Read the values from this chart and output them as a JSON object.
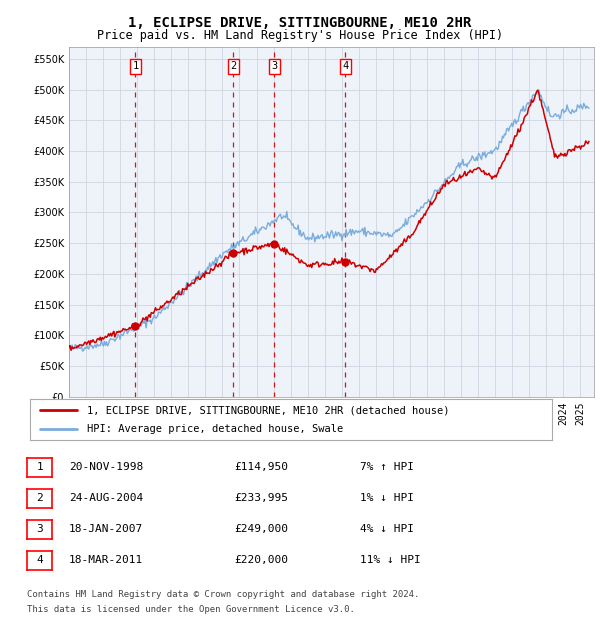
{
  "title": "1, ECLIPSE DRIVE, SITTINGBOURNE, ME10 2HR",
  "subtitle": "Price paid vs. HM Land Registry's House Price Index (HPI)",
  "ylim": [
    0,
    570000
  ],
  "yticks": [
    0,
    50000,
    100000,
    150000,
    200000,
    250000,
    300000,
    350000,
    400000,
    450000,
    500000,
    550000
  ],
  "xlim_start": 1995.0,
  "xlim_end": 2025.8,
  "legend1": "1, ECLIPSE DRIVE, SITTINGBOURNE, ME10 2HR (detached house)",
  "legend2": "HPI: Average price, detached house, Swale",
  "sale_color": "#cc0000",
  "hpi_color": "#7aacdc",
  "footnote1": "Contains HM Land Registry data © Crown copyright and database right 2024.",
  "footnote2": "This data is licensed under the Open Government Licence v3.0.",
  "sales": [
    {
      "num": 1,
      "date_x": 1998.9,
      "price": 114950,
      "label": "20-NOV-1998",
      "price_str": "£114,950",
      "hpi_str": "7% ↑ HPI"
    },
    {
      "num": 2,
      "date_x": 2004.65,
      "price": 233995,
      "label": "24-AUG-2004",
      "price_str": "£233,995",
      "hpi_str": "1% ↓ HPI"
    },
    {
      "num": 3,
      "date_x": 2007.05,
      "price": 249000,
      "label": "18-JAN-2007",
      "price_str": "£249,000",
      "hpi_str": "4% ↓ HPI"
    },
    {
      "num": 4,
      "date_x": 2011.22,
      "price": 220000,
      "label": "18-MAR-2011",
      "price_str": "£220,000",
      "hpi_str": "11% ↓ HPI"
    }
  ],
  "plot_bg": "#eef3fa",
  "grid_color": "#c8d0dc"
}
